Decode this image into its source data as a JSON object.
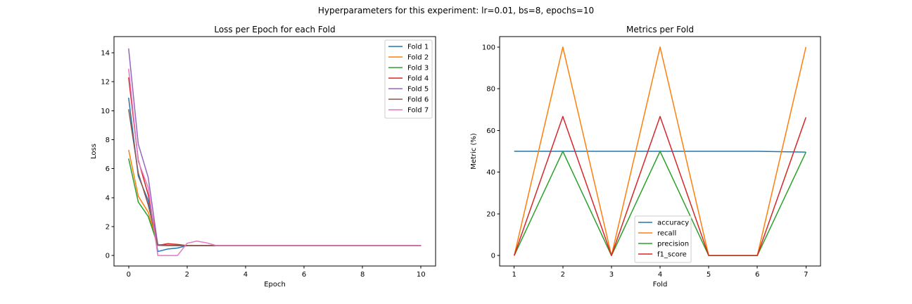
{
  "figure": {
    "suptitle": "Hyperparameters for this experiment: lr=0.01, bs=8, epochs=10"
  },
  "chart_data": [
    {
      "type": "line",
      "title": "Loss per Epoch for each Fold",
      "xlabel": "Epoch",
      "ylabel": "Loss",
      "xlim": [
        -0.5,
        10.5
      ],
      "ylim": [
        -0.72,
        15.12
      ],
      "xticks": [
        0,
        2,
        4,
        6,
        8,
        10
      ],
      "yticks": [
        0,
        2,
        4,
        6,
        8,
        10,
        12,
        14
      ],
      "legend_position": "top-right",
      "grid": false,
      "series": [
        {
          "name": "Fold 1",
          "color": "#1f77b4",
          "x": [
            0,
            0.33,
            0.67,
            1,
            1.33,
            1.67,
            2,
            2.33,
            2.67,
            3,
            4,
            5,
            6,
            7,
            8,
            9,
            10
          ],
          "y": [
            10.9,
            5.5,
            3.8,
            0.28,
            0.45,
            0.52,
            0.69,
            0.69,
            0.69,
            0.69,
            0.69,
            0.69,
            0.69,
            0.69,
            0.69,
            0.69,
            0.69
          ]
        },
        {
          "name": "Fold 2",
          "color": "#ff7f0e",
          "x": [
            0,
            0.33,
            0.67,
            1,
            1.33,
            1.67,
            2,
            2.33,
            2.67,
            3,
            4,
            5,
            6,
            7,
            8,
            9,
            10
          ],
          "y": [
            7.3,
            4.1,
            3.0,
            0.7,
            0.69,
            0.69,
            0.69,
            0.69,
            0.69,
            0.69,
            0.69,
            0.69,
            0.69,
            0.69,
            0.69,
            0.69,
            0.69
          ]
        },
        {
          "name": "Fold 3",
          "color": "#2ca02c",
          "x": [
            0,
            0.33,
            0.67,
            1,
            1.33,
            1.67,
            2,
            2.33,
            2.67,
            3,
            4,
            5,
            6,
            7,
            8,
            9,
            10
          ],
          "y": [
            6.7,
            3.7,
            2.7,
            0.7,
            0.69,
            0.69,
            0.69,
            0.69,
            0.69,
            0.69,
            0.69,
            0.69,
            0.69,
            0.69,
            0.69,
            0.69,
            0.69
          ]
        },
        {
          "name": "Fold 4",
          "color": "#d62728",
          "x": [
            0,
            0.33,
            0.67,
            1,
            1.33,
            1.67,
            2,
            2.33,
            2.67,
            3,
            4,
            5,
            6,
            7,
            8,
            9,
            10
          ],
          "y": [
            12.3,
            6.6,
            4.2,
            0.7,
            0.82,
            0.77,
            0.69,
            0.69,
            0.69,
            0.69,
            0.69,
            0.69,
            0.69,
            0.69,
            0.69,
            0.69,
            0.69
          ]
        },
        {
          "name": "Fold 5",
          "color": "#9467bd",
          "x": [
            0,
            0.33,
            0.67,
            1,
            1.33,
            1.67,
            2,
            2.33,
            2.67,
            3,
            4,
            5,
            6,
            7,
            8,
            9,
            10
          ],
          "y": [
            14.3,
            7.7,
            5.4,
            0.7,
            0.7,
            0.69,
            0.69,
            0.69,
            0.69,
            0.69,
            0.69,
            0.69,
            0.69,
            0.69,
            0.69,
            0.69,
            0.69
          ]
        },
        {
          "name": "Fold 6",
          "color": "#8c564b",
          "x": [
            0,
            0.33,
            0.67,
            1,
            1.33,
            1.67,
            2,
            2.33,
            2.67,
            3,
            4,
            5,
            6,
            7,
            8,
            9,
            10
          ],
          "y": [
            10.1,
            5.7,
            3.5,
            0.75,
            0.72,
            0.7,
            0.69,
            0.69,
            0.69,
            0.69,
            0.69,
            0.69,
            0.69,
            0.69,
            0.69,
            0.69,
            0.69
          ]
        },
        {
          "name": "Fold 7",
          "color": "#e377c2",
          "x": [
            0,
            0.33,
            0.67,
            1,
            1.33,
            1.67,
            2,
            2.33,
            2.67,
            3,
            4,
            5,
            6,
            7,
            8,
            9,
            10
          ],
          "y": [
            12.9,
            6.5,
            4.7,
            0.0,
            0.0,
            0.0,
            0.85,
            1.0,
            0.88,
            0.69,
            0.69,
            0.69,
            0.69,
            0.69,
            0.69,
            0.69,
            0.69
          ]
        }
      ]
    },
    {
      "type": "line",
      "title": "Metrics per Fold",
      "xlabel": "Fold",
      "ylabel": "Metric (%)",
      "xlim": [
        0.7,
        7.3
      ],
      "ylim": [
        -5,
        105
      ],
      "xticks": [
        1,
        2,
        3,
        4,
        5,
        6,
        7
      ],
      "yticks": [
        0,
        20,
        40,
        60,
        80,
        100
      ],
      "legend_position": "lower-center",
      "grid": false,
      "categories": [
        1,
        2,
        3,
        4,
        5,
        6,
        7
      ],
      "series": [
        {
          "name": "accuracy",
          "color": "#1f77b4",
          "values": [
            50,
            50,
            50,
            50,
            50,
            50,
            49.6
          ]
        },
        {
          "name": "recall",
          "color": "#ff7f0e",
          "values": [
            0,
            100,
            0,
            100,
            0,
            0,
            100
          ]
        },
        {
          "name": "precision",
          "color": "#2ca02c",
          "values": [
            0,
            50,
            0,
            50,
            0,
            0,
            49.6
          ]
        },
        {
          "name": "f1_score",
          "color": "#d62728",
          "values": [
            0,
            66.7,
            0,
            66.7,
            0,
            0,
            66.3
          ]
        }
      ]
    }
  ]
}
